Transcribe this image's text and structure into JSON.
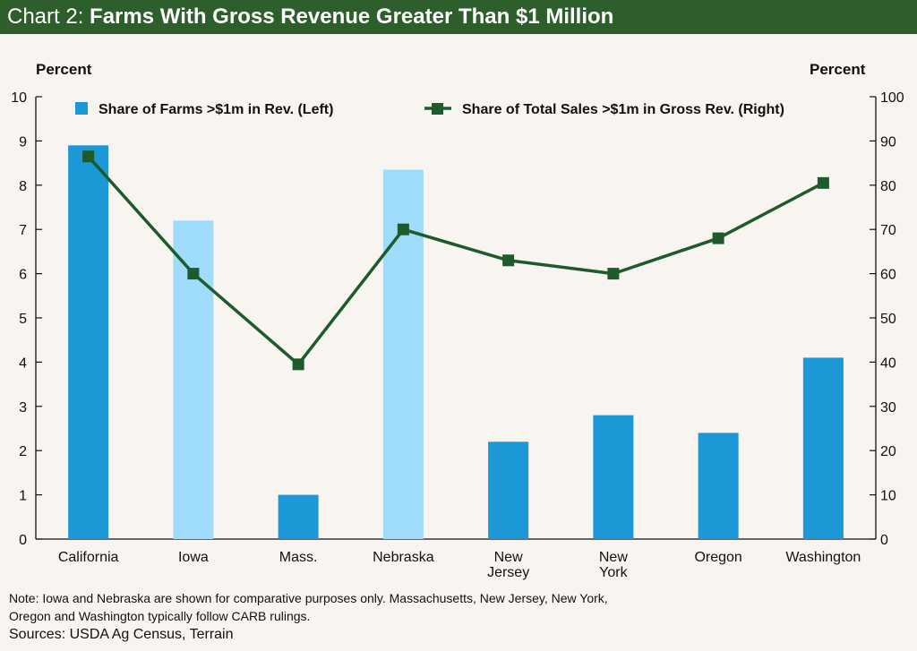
{
  "title": {
    "prefix": "Chart 2: ",
    "main": "Farms With Gross Revenue Greater Than $1 Million"
  },
  "chart_data": {
    "type": "bar+line",
    "categories": [
      [
        "California"
      ],
      [
        "Iowa"
      ],
      [
        "Mass."
      ],
      [
        "Nebraska"
      ],
      [
        "New",
        "Jersey"
      ],
      [
        "New",
        "York"
      ],
      [
        "Oregon"
      ],
      [
        "Washington"
      ]
    ],
    "series": [
      {
        "name": "Share of Farms >$1m in Rev. (Left)",
        "type": "bar",
        "axis": "left",
        "values": [
          8.9,
          7.2,
          1.0,
          8.35,
          2.2,
          2.8,
          2.4,
          4.1
        ],
        "colors": [
          "#1b98d5",
          "#9fdcfb",
          "#1b98d5",
          "#9fdcfb",
          "#1b98d5",
          "#1b98d5",
          "#1b98d5",
          "#1b98d5"
        ]
      },
      {
        "name": "Share of Total Sales >$1m in Gross Rev. (Right)",
        "type": "line",
        "axis": "right",
        "values": [
          86.5,
          60,
          39.5,
          70,
          63,
          60,
          68,
          80.5
        ],
        "color": "#1d5a2c"
      }
    ],
    "left_axis": {
      "label": "Percent",
      "min": 0,
      "max": 10,
      "ticks": [
        0,
        1,
        2,
        3,
        4,
        5,
        6,
        7,
        8,
        9,
        10
      ]
    },
    "right_axis": {
      "label": "Percent",
      "min": 0,
      "max": 100,
      "ticks": [
        0,
        10,
        20,
        30,
        40,
        50,
        60,
        70,
        80,
        90,
        100
      ]
    },
    "legend_position": "top",
    "grid": false
  },
  "footer": {
    "note_line1": "Note: Iowa and Nebraska are shown for comparative purposes only.  Massachusetts, New Jersey, New York,",
    "note_line2": "Oregon and Washington typically follow CARB rulings.",
    "sources": "Sources: USDA Ag Census, Terrain"
  }
}
